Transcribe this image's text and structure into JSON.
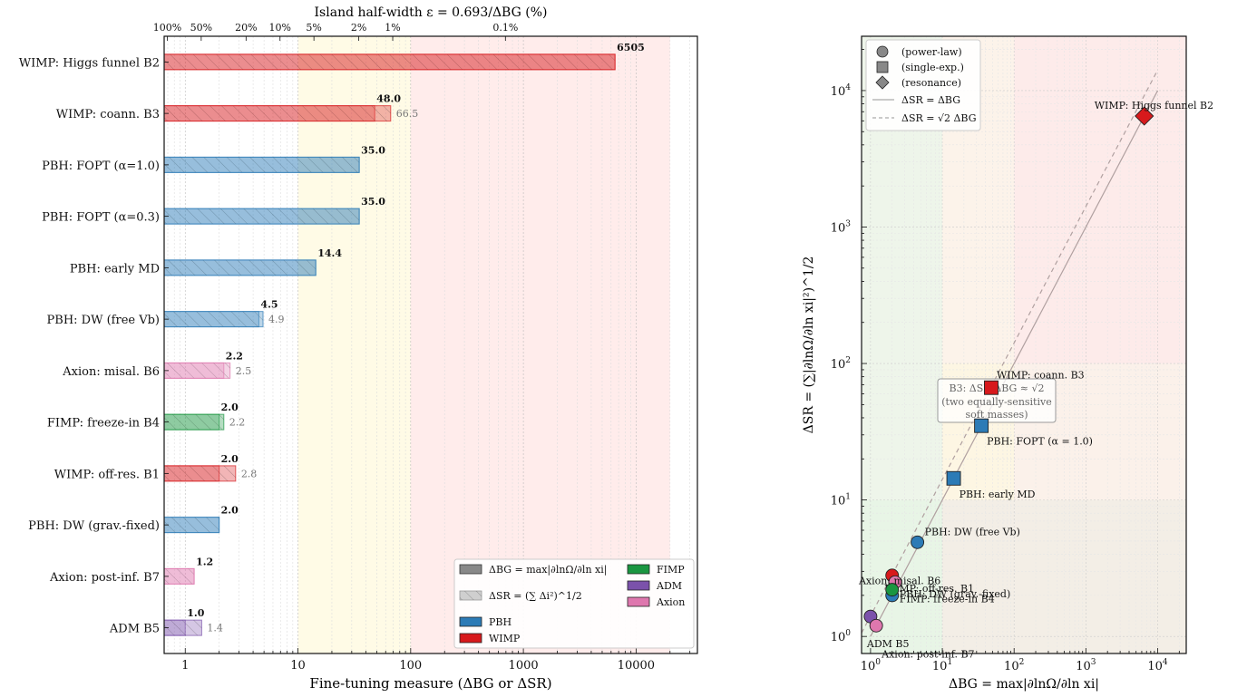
{
  "left": {
    "top_title": "Island half-width ε = 0.693/ΔBG  (%)",
    "top_ticks": [
      {
        "label": "100%",
        "x": 0.693
      },
      {
        "label": "50%",
        "x": 1.386
      },
      {
        "label": "20%",
        "x": 3.465
      },
      {
        "label": "10%",
        "x": 6.93
      },
      {
        "label": "5%",
        "x": 13.86
      },
      {
        "label": "2%",
        "x": 34.65
      },
      {
        "label": "1%",
        "x": 69.3
      },
      {
        "label": "0.1%",
        "x": 693
      }
    ],
    "xlabel": "Fine-tuning measure  (ΔBG or ΔSR)",
    "x_ticks": [
      {
        "label": "1",
        "v": 1
      },
      {
        "label": "10",
        "v": 10
      },
      {
        "label": "100",
        "v": 100
      },
      {
        "label": "1000",
        "v": 1000
      },
      {
        "label": "10000",
        "v": 10000
      }
    ],
    "xlim": [
      0.65,
      35000
    ],
    "bands": [
      {
        "from": 10,
        "to": 100,
        "color": "#fffbe6"
      },
      {
        "from": 100,
        "to": 20000,
        "color": "#ffeceb"
      }
    ],
    "legend": {
      "bg": "ΔBG = max|∂lnΩ/∂ln xi|",
      "sr": "ΔSR = (∑ Δi²)^1/2",
      "classes": [
        "PBH",
        "WIMP",
        "FIMP",
        "ADM",
        "Axion"
      ]
    }
  },
  "right": {
    "xlabel": "ΔBG = max|∂lnΩ/∂ln xi|",
    "ylabel": "ΔSR = (∑|∂lnΩ/∂ln xi|²)^1/2",
    "x_ticks": [
      {
        "mant": "10",
        "exp": "0"
      },
      {
        "mant": "10",
        "exp": "1"
      },
      {
        "mant": "10",
        "exp": "2"
      },
      {
        "mant": "10",
        "exp": "3"
      },
      {
        "mant": "10",
        "exp": "4"
      }
    ],
    "y_ticks": [
      {
        "mant": "10",
        "exp": "0"
      },
      {
        "mant": "10",
        "exp": "1"
      },
      {
        "mant": "10",
        "exp": "2"
      },
      {
        "mant": "10",
        "exp": "3"
      },
      {
        "mant": "10",
        "exp": "4"
      }
    ],
    "xlim": [
      0.75,
      25000
    ],
    "ylim": [
      0.75,
      25000
    ],
    "legend": {
      "power": "(power-law)",
      "single": "(single-exp.)",
      "resonance": "(resonance)",
      "eq": "ΔSR = ΔBG",
      "sqrt2": "ΔSR = √2 ΔBG"
    },
    "annotation": [
      "B3: ΔSR/ΔBG ≈ √2",
      "(two equally-sensitive",
      "soft masses)"
    ]
  },
  "colors": {
    "PBH": "#2c7bb6",
    "WIMP": "#d7191c",
    "FIMP": "#1a9641",
    "ADM": "#7b52ab",
    "Axion": "#de77ae"
  },
  "chart_data": [
    {
      "type": "bar",
      "orientation": "horizontal",
      "xscale": "log",
      "categories": [
        "WIMP: Higgs funnel B2",
        "WIMP: coann. B3",
        "PBH: FOPT (α=1.0)",
        "PBH: FOPT (α=0.3)",
        "PBH: early MD",
        "PBH: DW (free Vb)",
        "Axion: misal. B6",
        "FIMP: freeze-in B4",
        "WIMP: off-res. B1",
        "PBH: DW (grav.-fixed)",
        "Axion: post-inf. B7",
        "ADM B5"
      ],
      "series": [
        {
          "name": "ΔBG",
          "values": [
            6505,
            48.0,
            35.0,
            35.0,
            14.4,
            4.5,
            2.2,
            2.0,
            2.0,
            2.0,
            1.2,
            1.0
          ]
        },
        {
          "name": "ΔSR",
          "values": [
            6505,
            66.5,
            35.0,
            35.0,
            14.4,
            4.9,
            2.5,
            2.2,
            2.8,
            2.0,
            1.2,
            1.4
          ]
        }
      ],
      "classes": [
        "WIMP",
        "WIMP",
        "PBH",
        "PBH",
        "PBH",
        "PBH",
        "Axion",
        "FIMP",
        "WIMP",
        "PBH",
        "Axion",
        "ADM"
      ],
      "bg_labels": [
        "6505",
        "48.0",
        "35.0",
        "35.0",
        "14.4",
        "4.5",
        "2.2",
        "2.0",
        "2.0",
        "2.0",
        "1.2",
        "1.0"
      ],
      "sr_labels": [
        "",
        "66.5",
        "",
        "",
        "",
        "4.9",
        "2.5",
        "2.2",
        "2.8",
        "",
        "",
        "1.4"
      ]
    },
    {
      "type": "scatter",
      "xscale": "log",
      "yscale": "log",
      "points": [
        {
          "label": "WIMP: Higgs funnel B2",
          "x": 6505,
          "y": 6505,
          "class": "WIMP",
          "marker": "diamond"
        },
        {
          "label": "WIMP: coann. B3",
          "x": 48,
          "y": 66.5,
          "class": "WIMP",
          "marker": "square"
        },
        {
          "label": "PBH: FOPT (α = 1.0)",
          "x": 35,
          "y": 35,
          "class": "PBH",
          "marker": "square"
        },
        {
          "label": "PBH: early MD",
          "x": 14.4,
          "y": 14.4,
          "class": "PBH",
          "marker": "square"
        },
        {
          "label": "PBH: DW (free Vb)",
          "x": 4.5,
          "y": 4.9,
          "class": "PBH",
          "marker": "circle"
        },
        {
          "label": "WIMP: off-res. B1",
          "x": 2.0,
          "y": 2.8,
          "class": "WIMP",
          "marker": "circle"
        },
        {
          "label": "Axion: misal. B6",
          "x": 2.2,
          "y": 2.5,
          "class": "Axion",
          "marker": "circle"
        },
        {
          "label": "PBH: DW (grav.-fixed)",
          "x": 2.0,
          "y": 2.0,
          "class": "PBH",
          "marker": "circle"
        },
        {
          "label": "FIMP: freeze-in B4",
          "x": 2.0,
          "y": 2.2,
          "class": "FIMP",
          "marker": "circle"
        },
        {
          "label": "ADM B5",
          "x": 1.0,
          "y": 1.4,
          "class": "ADM",
          "marker": "circle"
        },
        {
          "label": "Axion: post-inf. B7",
          "x": 1.2,
          "y": 1.2,
          "class": "Axion",
          "marker": "circle"
        }
      ]
    }
  ]
}
